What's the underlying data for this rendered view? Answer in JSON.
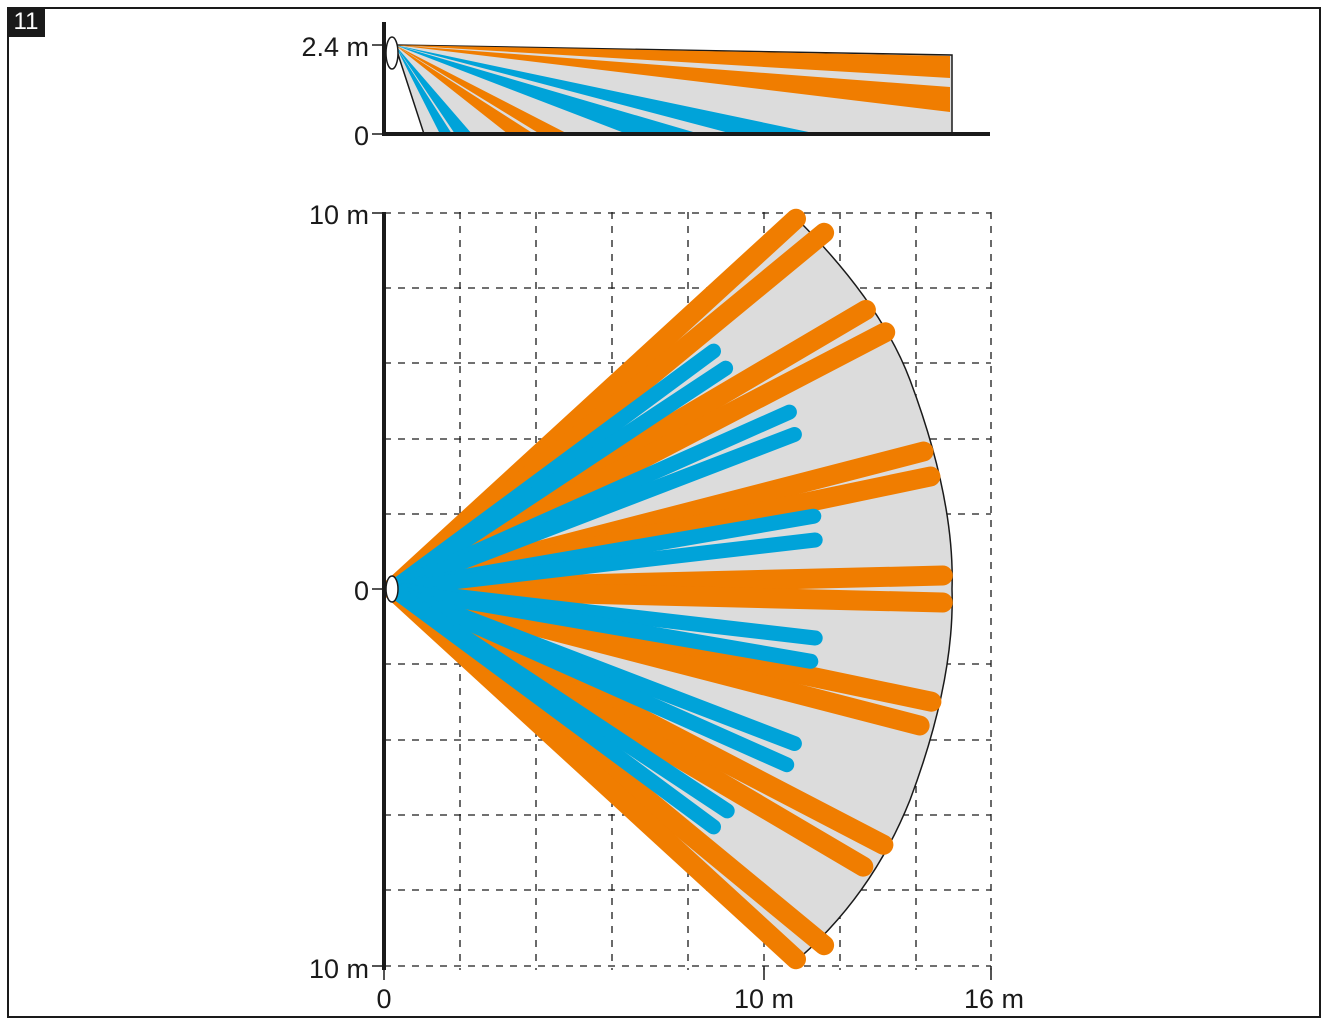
{
  "figure": {
    "number": "11"
  },
  "side_view": {
    "y_labels": {
      "top": "2.4 m",
      "bottom": "0"
    }
  },
  "top_view": {
    "y_labels": {
      "top": "10 m",
      "middle": "0",
      "bottom": "10 m"
    },
    "x_labels": {
      "origin": "0",
      "mid": "10 m",
      "end": "16 m"
    },
    "coverage_range_m": 15,
    "grid_step_m": 2
  },
  "colors": {
    "coverage_area": "#dcdcdc",
    "long_range_beam": "#f07d00",
    "short_range_beam": "#00a3d9",
    "grid": "#1a1a1a"
  }
}
